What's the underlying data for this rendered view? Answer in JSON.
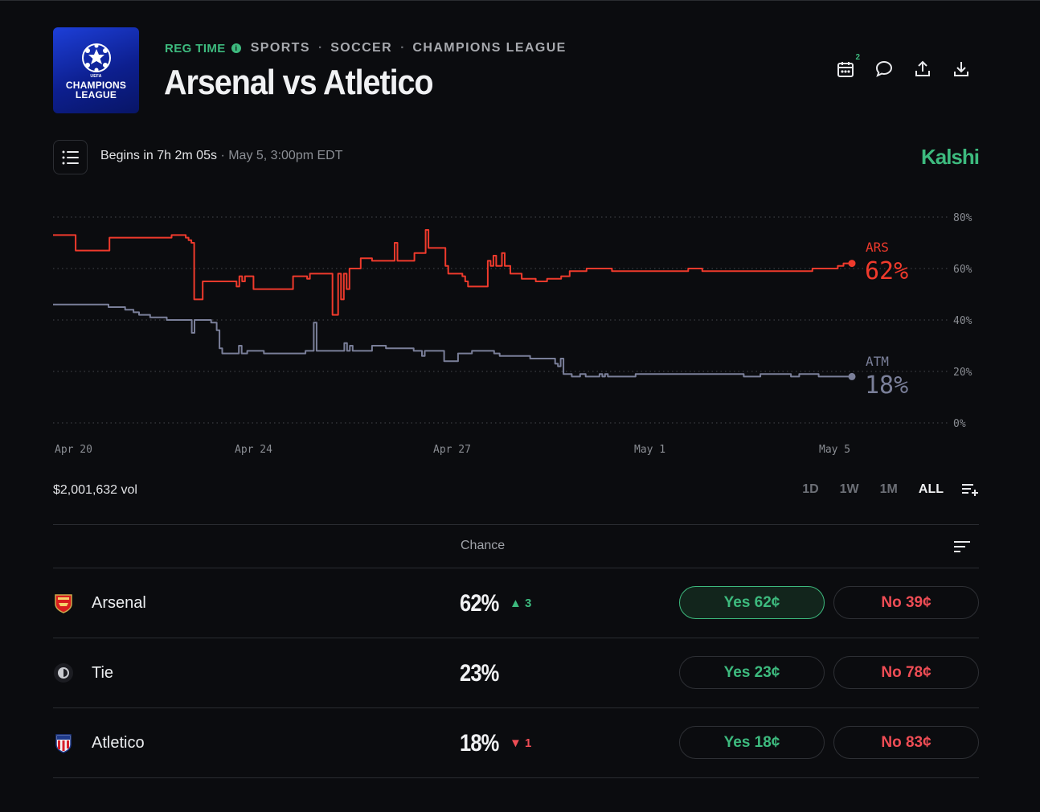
{
  "header": {
    "logo_lines": [
      "UEFA",
      "CHAMPIONS",
      "LEAGUE"
    ],
    "status": "REG TIME",
    "breadcrumbs": [
      "SPORTS",
      "SOCCER",
      "CHAMPIONS LEAGUE"
    ],
    "title": "Arsenal vs Atletico",
    "calendar_badge": "2"
  },
  "info_bar": {
    "begins": "Begins in 7h 2m 05s",
    "date": "· May 5, 3:00pm EDT",
    "brand": "Kalshi"
  },
  "chart_data": {
    "type": "line",
    "x_ticks": [
      "Apr 20",
      "Apr 24",
      "Apr 27",
      "May 1",
      "May 5"
    ],
    "y_ticks": [
      "80%",
      "60%",
      "40%",
      "20%",
      "0%"
    ],
    "ylim": [
      0,
      80
    ],
    "grid": true,
    "series": [
      {
        "name": "ARS",
        "end_label": "62%",
        "color": "#ef3a2c",
        "values": [
          73,
          73,
          73,
          73,
          73,
          73,
          73,
          73,
          67,
          67,
          67,
          67,
          67,
          67,
          67,
          67,
          67,
          67,
          67,
          67,
          72,
          72,
          72,
          72,
          72,
          72,
          72,
          72,
          72,
          72,
          72,
          72,
          72,
          72,
          72,
          72,
          72,
          72,
          72,
          72,
          72,
          72,
          73,
          73,
          73,
          73,
          73,
          72,
          71,
          70,
          48,
          48,
          48,
          55,
          55,
          55,
          55,
          55,
          55,
          55,
          55,
          55,
          55,
          55,
          55,
          53,
          57,
          55,
          57,
          57,
          57,
          52,
          52,
          52,
          52,
          52,
          52,
          52,
          52,
          52,
          52,
          52,
          52,
          52,
          52,
          57,
          57,
          57,
          57,
          57,
          56,
          58,
          58,
          58,
          58,
          58,
          58,
          58,
          58,
          42,
          42,
          58,
          48,
          58,
          52,
          60,
          60,
          60,
          60,
          64,
          64,
          64,
          64,
          63,
          63,
          63,
          63,
          63,
          63,
          63,
          63,
          70,
          63,
          63,
          63,
          63,
          63,
          63,
          66,
          66,
          66,
          66,
          75,
          68,
          68,
          68,
          68,
          68,
          68,
          61,
          58,
          58,
          58,
          58,
          58,
          57,
          55,
          53,
          53,
          53,
          53,
          53,
          53,
          53,
          63,
          61,
          65,
          61,
          61,
          66,
          61,
          61,
          58,
          58,
          58,
          58,
          56,
          56,
          56,
          56,
          56,
          55,
          55,
          55,
          55,
          56,
          56,
          56,
          56,
          56,
          57,
          57,
          57,
          59,
          59,
          59,
          59,
          59,
          59,
          60,
          60,
          60,
          60,
          60,
          60,
          60,
          60,
          60,
          59,
          59,
          59,
          59,
          59,
          59,
          59,
          59,
          59,
          59,
          59,
          59,
          59,
          59,
          59,
          59,
          59,
          59,
          59,
          59,
          59,
          59,
          59,
          59,
          59,
          59,
          59,
          60,
          60,
          60,
          60,
          60,
          59,
          59,
          59,
          59,
          59,
          59,
          59,
          59,
          59,
          59,
          59,
          59,
          59,
          59,
          59,
          59,
          59,
          59,
          59,
          59,
          59,
          59,
          59,
          59,
          59,
          59,
          59,
          59,
          59,
          59,
          59,
          59,
          59,
          59,
          59,
          59,
          59,
          59,
          59,
          60,
          60,
          60,
          60,
          60,
          60,
          60,
          60,
          60,
          61,
          61,
          62,
          62,
          62,
          62
        ],
        "end_value": 62
      },
      {
        "name": "ATM",
        "end_label": "18%",
        "color": "#7a7f99",
        "values": [
          46,
          46,
          46,
          46,
          46,
          46,
          46,
          46,
          46,
          46,
          46,
          46,
          46,
          46,
          46,
          46,
          46,
          46,
          46,
          46,
          45,
          45,
          45,
          45,
          45,
          45,
          44,
          44,
          44,
          43,
          43,
          42,
          42,
          42,
          42,
          41,
          41,
          41,
          41,
          41,
          41,
          40,
          40,
          40,
          40,
          40,
          40,
          40,
          40,
          40,
          35,
          40,
          40,
          40,
          40,
          40,
          40,
          39,
          39,
          36,
          29,
          27,
          27,
          27,
          27,
          27,
          27,
          30,
          27,
          27,
          28,
          28,
          28,
          28,
          28,
          28,
          27,
          27,
          27,
          27,
          27,
          27,
          27,
          27,
          27,
          27,
          27,
          27,
          27,
          27,
          27,
          28,
          28,
          28,
          39,
          28,
          28,
          28,
          28,
          28,
          28,
          28,
          28,
          28,
          28,
          31,
          28,
          30,
          28,
          28,
          28,
          28,
          28,
          28,
          28,
          30,
          30,
          30,
          30,
          30,
          29,
          29,
          29,
          29,
          29,
          29,
          29,
          29,
          29,
          29,
          28,
          28,
          28,
          26,
          28,
          28,
          28,
          28,
          28,
          28,
          28,
          24,
          24,
          24,
          24,
          24,
          27,
          27,
          27,
          27,
          27,
          28,
          28,
          28,
          28,
          28,
          28,
          28,
          28,
          27,
          27,
          26,
          26,
          26,
          26,
          26,
          26,
          26,
          26,
          26,
          26,
          26,
          25,
          25,
          25,
          25,
          25,
          25,
          25,
          25,
          25,
          23,
          22,
          25,
          19,
          19,
          19,
          18,
          18,
          18,
          19,
          19,
          18,
          18,
          18,
          18,
          18,
          19,
          18,
          19,
          18,
          18,
          18,
          18,
          18,
          18,
          18,
          18,
          18,
          18,
          19,
          19,
          19,
          19,
          19,
          19,
          19,
          19,
          19,
          19,
          19,
          19,
          19,
          19,
          19,
          19,
          19,
          19,
          19,
          19,
          19,
          19,
          19,
          19,
          19,
          19,
          19,
          19,
          19,
          19,
          19,
          19,
          19,
          19,
          19,
          19,
          19,
          19,
          19,
          18,
          18,
          18,
          18,
          18,
          18,
          19,
          19,
          19,
          19,
          19,
          19,
          19,
          19,
          19,
          19,
          19,
          18,
          18,
          18,
          19,
          19,
          19,
          19,
          19,
          19,
          19,
          18,
          18,
          18,
          18,
          18,
          18,
          18,
          18,
          18,
          18,
          18,
          18,
          18
        ],
        "end_value": 18
      }
    ]
  },
  "volume": "$2,001,632 vol",
  "ranges": [
    "1D",
    "1W",
    "1M",
    "ALL"
  ],
  "active_range": "ALL",
  "table": {
    "header_chance": "Chance",
    "rows": [
      {
        "name": "Arsenal",
        "chance": "62%",
        "delta": "▲ 3",
        "delta_dir": "up",
        "yes": "Yes 62¢",
        "no": "No 39¢",
        "icon": "arsenal-crest-icon"
      },
      {
        "name": "Tie",
        "chance": "23%",
        "delta": "",
        "delta_dir": "",
        "yes": "Yes 23¢",
        "no": "No 78¢",
        "icon": "tie-half-circle-icon"
      },
      {
        "name": "Atletico",
        "chance": "18%",
        "delta": "▼ 1",
        "delta_dir": "down",
        "yes": "Yes 18¢",
        "no": "No 83¢",
        "icon": "atletico-crest-icon"
      }
    ]
  }
}
